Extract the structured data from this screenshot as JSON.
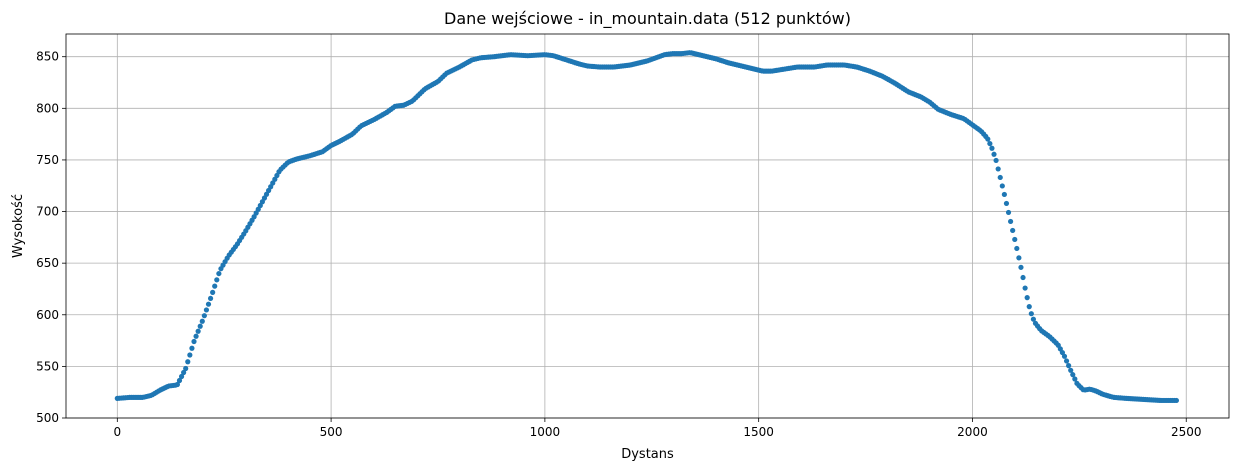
{
  "chart_data": {
    "type": "scatter",
    "title": "Dane wejściowe - in_mountain.data (512 punktów)",
    "xlabel": "Dystans",
    "ylabel": "Wysokość",
    "xlim": [
      -120,
      2600
    ],
    "ylim": [
      500,
      872
    ],
    "xticks": [
      0,
      500,
      1000,
      1500,
      2000,
      2500
    ],
    "yticks": [
      500,
      550,
      600,
      650,
      700,
      750,
      800,
      850
    ],
    "grid": true,
    "marker_color": "#1f77b4",
    "point_count": 512,
    "x_range": [
      0,
      2477
    ],
    "profile": [
      [
        0,
        519
      ],
      [
        30,
        520
      ],
      [
        60,
        520
      ],
      [
        80,
        522
      ],
      [
        100,
        527
      ],
      [
        120,
        531
      ],
      [
        140,
        532
      ],
      [
        160,
        548
      ],
      [
        180,
        575
      ],
      [
        200,
        595
      ],
      [
        220,
        618
      ],
      [
        240,
        643
      ],
      [
        260,
        657
      ],
      [
        280,
        668
      ],
      [
        300,
        681
      ],
      [
        320,
        695
      ],
      [
        340,
        710
      ],
      [
        360,
        725
      ],
      [
        380,
        740
      ],
      [
        400,
        748
      ],
      [
        420,
        751
      ],
      [
        450,
        754
      ],
      [
        480,
        758
      ],
      [
        500,
        764
      ],
      [
        520,
        768
      ],
      [
        550,
        775
      ],
      [
        570,
        783
      ],
      [
        600,
        789
      ],
      [
        630,
        796
      ],
      [
        650,
        802
      ],
      [
        670,
        803
      ],
      [
        690,
        807
      ],
      [
        720,
        819
      ],
      [
        750,
        826
      ],
      [
        770,
        834
      ],
      [
        800,
        840
      ],
      [
        830,
        847
      ],
      [
        850,
        849
      ],
      [
        880,
        850
      ],
      [
        920,
        852
      ],
      [
        960,
        851
      ],
      [
        1000,
        852
      ],
      [
        1020,
        851
      ],
      [
        1050,
        847
      ],
      [
        1080,
        843
      ],
      [
        1100,
        841
      ],
      [
        1130,
        840
      ],
      [
        1160,
        840
      ],
      [
        1200,
        842
      ],
      [
        1240,
        846
      ],
      [
        1280,
        852
      ],
      [
        1300,
        853
      ],
      [
        1320,
        853
      ],
      [
        1340,
        854
      ],
      [
        1370,
        851
      ],
      [
        1400,
        848
      ],
      [
        1430,
        844
      ],
      [
        1460,
        841
      ],
      [
        1490,
        838
      ],
      [
        1510,
        836
      ],
      [
        1530,
        836
      ],
      [
        1560,
        838
      ],
      [
        1590,
        840
      ],
      [
        1630,
        840
      ],
      [
        1660,
        842
      ],
      [
        1700,
        842
      ],
      [
        1730,
        840
      ],
      [
        1760,
        836
      ],
      [
        1790,
        831
      ],
      [
        1820,
        824
      ],
      [
        1850,
        816
      ],
      [
        1880,
        811
      ],
      [
        1900,
        806
      ],
      [
        1920,
        799
      ],
      [
        1950,
        794
      ],
      [
        1980,
        790
      ],
      [
        2000,
        784
      ],
      [
        2020,
        778
      ],
      [
        2035,
        771
      ],
      [
        2045,
        762
      ],
      [
        2055,
        750
      ],
      [
        2065,
        733
      ],
      [
        2075,
        716
      ],
      [
        2085,
        698
      ],
      [
        2095,
        680
      ],
      [
        2105,
        662
      ],
      [
        2115,
        643
      ],
      [
        2125,
        622
      ],
      [
        2135,
        604
      ],
      [
        2145,
        593
      ],
      [
        2160,
        585
      ],
      [
        2180,
        579
      ],
      [
        2200,
        571
      ],
      [
        2215,
        560
      ],
      [
        2230,
        546
      ],
      [
        2245,
        533
      ],
      [
        2260,
        527
      ],
      [
        2275,
        528
      ],
      [
        2290,
        526
      ],
      [
        2305,
        523
      ],
      [
        2330,
        520
      ],
      [
        2360,
        519
      ],
      [
        2400,
        518
      ],
      [
        2440,
        517
      ],
      [
        2477,
        517
      ]
    ]
  }
}
